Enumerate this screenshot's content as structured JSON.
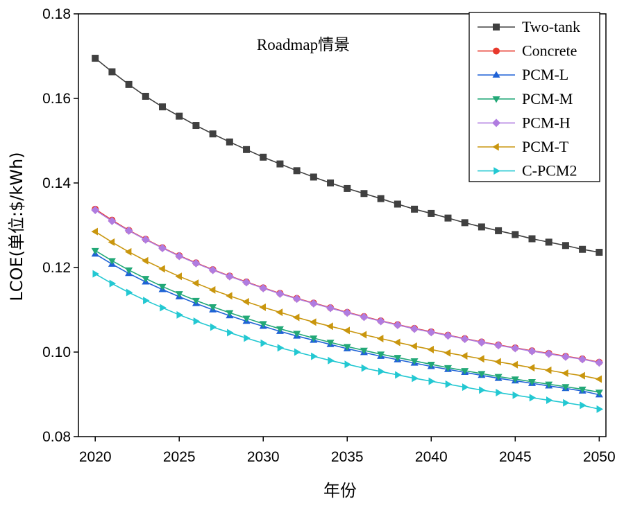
{
  "chart_data": {
    "type": "line",
    "title": "Roadmap情景",
    "xlabel": "年份",
    "ylabel": "LCOE(单位:$/kWh)",
    "xlim": [
      2019,
      2050.4
    ],
    "ylim": [
      0.08,
      0.18
    ],
    "x_ticks": [
      2020,
      2025,
      2030,
      2035,
      2040,
      2045,
      2050
    ],
    "y_ticks": [
      0.08,
      0.1,
      0.12,
      0.14,
      0.16,
      0.18
    ],
    "y_tick_labels": [
      "0.08",
      "0.10",
      "0.12",
      "0.14",
      "0.16",
      "0.18"
    ],
    "legend_position": "top-right",
    "x": [
      2020,
      2021,
      2022,
      2023,
      2024,
      2025,
      2026,
      2027,
      2028,
      2029,
      2030,
      2031,
      2032,
      2033,
      2034,
      2035,
      2036,
      2037,
      2038,
      2039,
      2040,
      2041,
      2042,
      2043,
      2044,
      2045,
      2046,
      2047,
      2048,
      2049,
      2050
    ],
    "series": [
      {
        "name": "Two-tank",
        "color": "#404040",
        "marker": "square",
        "values": [
          0.1695,
          0.1663,
          0.1633,
          0.1605,
          0.158,
          0.1558,
          0.1536,
          0.1516,
          0.1497,
          0.1479,
          0.1461,
          0.1445,
          0.1429,
          0.1414,
          0.14,
          0.1387,
          0.1375,
          0.1363,
          0.135,
          0.1338,
          0.1328,
          0.1317,
          0.1306,
          0.1296,
          0.1287,
          0.1278,
          0.1268,
          0.126,
          0.1252,
          0.1243,
          0.1236
        ]
      },
      {
        "name": "Concrete",
        "color": "#e8392c",
        "marker": "circle",
        "values": [
          0.1338,
          0.1312,
          0.1288,
          0.1267,
          0.1247,
          0.1228,
          0.1211,
          0.1195,
          0.118,
          0.1166,
          0.1152,
          0.1139,
          0.1127,
          0.1116,
          0.1105,
          0.1094,
          0.1084,
          0.1074,
          0.1065,
          0.1056,
          0.1048,
          0.104,
          0.1032,
          0.1024,
          0.1017,
          0.101,
          0.1003,
          0.0997,
          0.099,
          0.0984,
          0.0976
        ]
      },
      {
        "name": "PCM-L",
        "color": "#1f62d6",
        "marker": "triangle-up",
        "values": [
          0.1232,
          0.1208,
          0.1186,
          0.1166,
          0.1148,
          0.1131,
          0.1115,
          0.11,
          0.1086,
          0.1073,
          0.1061,
          0.1049,
          0.1038,
          0.1028,
          0.1018,
          0.1008,
          0.0999,
          0.099,
          0.0982,
          0.0974,
          0.0966,
          0.0959,
          0.0952,
          0.0945,
          0.0938,
          0.0932,
          0.0926,
          0.092,
          0.0914,
          0.0908,
          0.0899
        ]
      },
      {
        "name": "PCM-M",
        "color": "#22a877",
        "marker": "triangle-down",
        "values": [
          0.124,
          0.1216,
          0.1194,
          0.1174,
          0.1155,
          0.1138,
          0.1122,
          0.1107,
          0.1093,
          0.108,
          0.1067,
          0.1055,
          0.1044,
          0.1033,
          0.1023,
          0.1013,
          0.1004,
          0.0995,
          0.0987,
          0.0979,
          0.0971,
          0.0963,
          0.0956,
          0.0949,
          0.0942,
          0.0936,
          0.093,
          0.0924,
          0.0918,
          0.0912,
          0.0905
        ]
      },
      {
        "name": "PCM-H",
        "color": "#b07ce0",
        "marker": "diamond",
        "values": [
          0.1336,
          0.131,
          0.1287,
          0.1266,
          0.1246,
          0.1227,
          0.121,
          0.1194,
          0.1179,
          0.1165,
          0.1151,
          0.1138,
          0.1126,
          0.1115,
          0.1104,
          0.1093,
          0.1083,
          0.1073,
          0.1064,
          0.1055,
          0.1047,
          0.1039,
          0.1031,
          0.1023,
          0.1016,
          0.1009,
          0.1002,
          0.0996,
          0.0989,
          0.0983,
          0.0975
        ]
      },
      {
        "name": "PCM-T",
        "color": "#c9960e",
        "marker": "triangle-left",
        "values": [
          0.1285,
          0.126,
          0.1237,
          0.1216,
          0.1197,
          0.1179,
          0.1163,
          0.1147,
          0.1133,
          0.1119,
          0.1106,
          0.1094,
          0.1082,
          0.1071,
          0.1061,
          0.1051,
          0.1041,
          0.1032,
          0.1023,
          0.1014,
          0.1006,
          0.0998,
          0.0991,
          0.0984,
          0.0977,
          0.097,
          0.0963,
          0.0957,
          0.095,
          0.0944,
          0.0936
        ]
      },
      {
        "name": "C-PCM2",
        "color": "#23c8d2",
        "marker": "triangle-right",
        "values": [
          0.1185,
          0.1162,
          0.1141,
          0.1122,
          0.1105,
          0.1088,
          0.1073,
          0.1059,
          0.1046,
          0.1033,
          0.1021,
          0.101,
          0.1,
          0.099,
          0.098,
          0.0971,
          0.0962,
          0.0954,
          0.0946,
          0.0938,
          0.0931,
          0.0924,
          0.0917,
          0.091,
          0.0904,
          0.0898,
          0.0892,
          0.0886,
          0.088,
          0.0874,
          0.0865
        ]
      }
    ]
  }
}
